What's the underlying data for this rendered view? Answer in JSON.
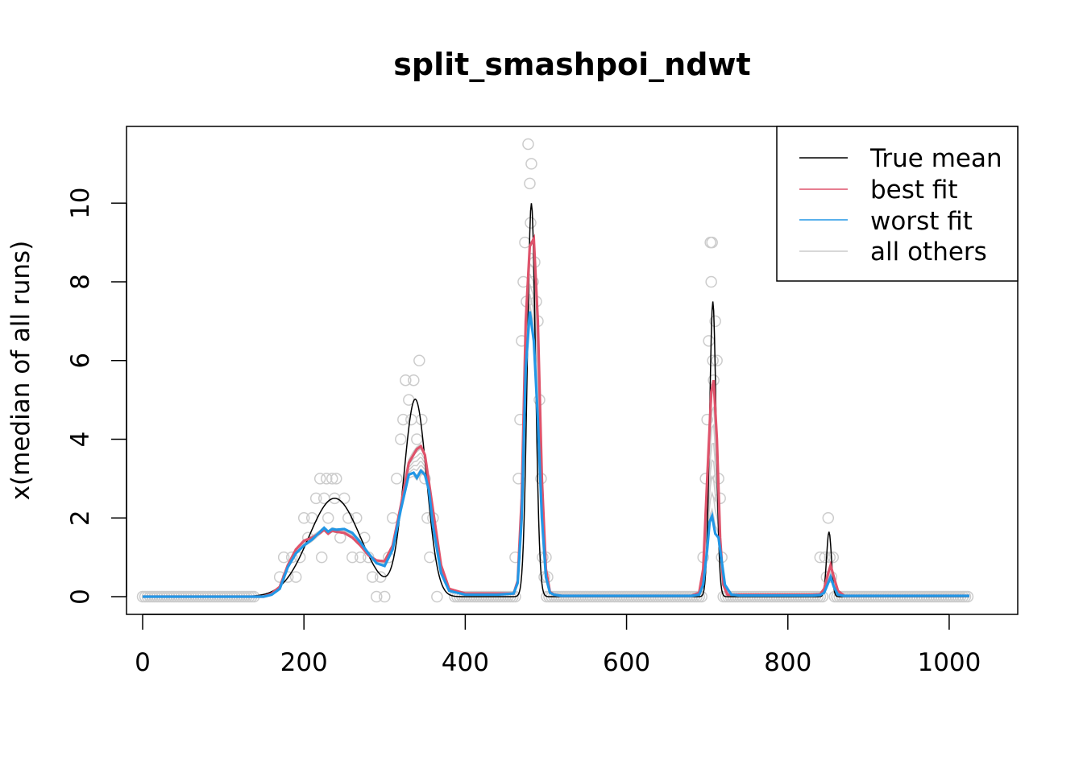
{
  "chart_data": {
    "type": "line",
    "title": "split_smashpoi_ndwt",
    "xlabel": "",
    "ylabel": "x(median of all runs)",
    "xlim": [
      -20,
      1085
    ],
    "ylim": [
      -0.45,
      11.95
    ],
    "xticks": [
      0,
      200,
      400,
      600,
      800,
      1000
    ],
    "yticks": [
      0,
      2,
      4,
      6,
      8,
      10
    ],
    "legend": {
      "position": "top-right",
      "entries": [
        {
          "label": "True mean",
          "color": "#000000"
        },
        {
          "label": "best fit",
          "color": "#DF536B"
        },
        {
          "label": "worst fit",
          "color": "#2297E6"
        },
        {
          "label": "all others",
          "color": "#CCCCCC"
        }
      ]
    },
    "colors": {
      "true_mean": "#000000",
      "best_fit": "#DF536B",
      "worst_fit": "#2297E6",
      "others": "#CCCCCC",
      "points": "#CCCCCC"
    },
    "true_mean_components": [
      {
        "center": 238,
        "height": 2.5,
        "width": 32
      },
      {
        "center": 338,
        "height": 5.0,
        "width": 14
      },
      {
        "center": 482,
        "height": 10.0,
        "width": 5
      },
      {
        "center": 707,
        "height": 7.5,
        "width": 4
      },
      {
        "center": 851,
        "height": 1.65,
        "width": 3
      }
    ],
    "series": [
      {
        "name": "best fit",
        "x": [
          0,
          150,
          160,
          170,
          180,
          190,
          200,
          210,
          220,
          225,
          230,
          235,
          240,
          250,
          260,
          270,
          280,
          290,
          300,
          310,
          320,
          330,
          340,
          345,
          350,
          360,
          370,
          380,
          400,
          440,
          460,
          465,
          470,
          475,
          480,
          485,
          490,
          495,
          500,
          505,
          510,
          520,
          680,
          690,
          695,
          700,
          705,
          708,
          712,
          716,
          720,
          725,
          740,
          830,
          840,
          845,
          850,
          853,
          857,
          862,
          870,
          1025
        ],
        "y": [
          0,
          0,
          0.08,
          0.25,
          0.8,
          1.2,
          1.42,
          1.5,
          1.62,
          1.7,
          1.6,
          1.68,
          1.65,
          1.62,
          1.5,
          1.3,
          1.05,
          0.92,
          0.9,
          1.3,
          2.3,
          3.4,
          3.75,
          3.82,
          3.6,
          2.2,
          0.8,
          0.2,
          0.08,
          0.08,
          0.08,
          0.4,
          2.5,
          7.0,
          8.9,
          9.1,
          7.0,
          3.0,
          0.7,
          0.12,
          0.05,
          0.02,
          0.02,
          0.1,
          0.7,
          3.0,
          5.2,
          5.5,
          4.0,
          1.5,
          0.3,
          0.05,
          0.05,
          0.05,
          0.06,
          0.2,
          0.6,
          0.8,
          0.5,
          0.15,
          0.02,
          0.02
        ]
      },
      {
        "name": "worst fit",
        "x": [
          0,
          150,
          160,
          170,
          180,
          190,
          200,
          210,
          220,
          225,
          230,
          235,
          240,
          250,
          260,
          270,
          280,
          290,
          300,
          310,
          320,
          330,
          336,
          340,
          345,
          350,
          355,
          360,
          370,
          380,
          400,
          440,
          460,
          465,
          470,
          475,
          480,
          485,
          490,
          495,
          500,
          505,
          510,
          520,
          680,
          690,
          695,
          700,
          703,
          706,
          710,
          714,
          718,
          722,
          730,
          740,
          830,
          840,
          845,
          850,
          853,
          857,
          862,
          870,
          1025
        ],
        "y": [
          0,
          0,
          0.05,
          0.2,
          0.75,
          1.1,
          1.3,
          1.45,
          1.65,
          1.75,
          1.65,
          1.72,
          1.7,
          1.72,
          1.62,
          1.38,
          1.1,
          0.85,
          0.78,
          1.2,
          2.2,
          3.1,
          3.15,
          3.02,
          3.2,
          3.1,
          2.7,
          1.8,
          0.6,
          0.15,
          0.05,
          0.05,
          0.08,
          0.35,
          2.0,
          5.8,
          7.25,
          6.5,
          4.5,
          2.0,
          0.5,
          0.1,
          0.05,
          0.02,
          0.02,
          0.05,
          0.3,
          1.2,
          1.9,
          2.05,
          1.6,
          1.5,
          0.9,
          0.3,
          0.05,
          0.03,
          0.03,
          0.04,
          0.1,
          0.35,
          0.5,
          0.25,
          0.05,
          0.02,
          0.02
        ]
      }
    ],
    "others": {
      "count": 8,
      "description_free": true
    },
    "scatter_points_sample_heights": {
      "x": [
        170,
        175,
        180,
        185,
        190,
        195,
        200,
        205,
        210,
        215,
        220,
        222,
        225,
        228,
        230,
        235,
        238,
        240,
        245,
        250,
        255,
        260,
        265,
        270,
        275,
        280,
        285,
        290,
        295,
        300,
        305,
        310,
        315,
        320,
        323,
        326,
        330,
        333,
        336,
        340,
        343,
        346,
        350,
        353,
        356,
        360,
        365,
        462,
        466,
        468,
        470,
        472,
        474,
        476,
        478,
        480,
        481,
        482,
        484,
        486,
        488,
        490,
        492,
        494,
        496,
        498,
        500,
        502,
        695,
        698,
        700,
        702,
        704,
        705,
        706,
        707,
        708,
        710,
        712,
        714,
        716,
        718,
        720,
        840,
        843,
        846,
        848,
        850,
        852,
        854,
        856,
        858
      ],
      "y": [
        0.5,
        1.0,
        0.5,
        1.0,
        0.5,
        1.0,
        2.0,
        1.5,
        2.0,
        2.5,
        3.0,
        1.0,
        2.5,
        3.0,
        2.0,
        3.0,
        2.5,
        3.0,
        1.5,
        2.5,
        2.0,
        1.0,
        2.0,
        1.0,
        1.5,
        1.0,
        0.5,
        0.0,
        0.5,
        0.0,
        1.0,
        2.0,
        3.0,
        4.0,
        4.5,
        5.5,
        5.0,
        4.5,
        5.5,
        4.0,
        6.0,
        4.5,
        3.0,
        2.0,
        1.0,
        2.0,
        0.0,
        1.0,
        3.0,
        4.5,
        6.5,
        8.0,
        9.0,
        7.5,
        11.5,
        10.5,
        9.5,
        11.0,
        8.0,
        8.5,
        7.5,
        7.0,
        5.0,
        3.0,
        1.0,
        0.5,
        1.0,
        0.5,
        1.0,
        3.0,
        4.5,
        6.5,
        9.0,
        8.0,
        9.0,
        6.0,
        5.5,
        7.0,
        6.0,
        3.0,
        2.5,
        1.0,
        0.0,
        1.0,
        0.0,
        1.0,
        0.5,
        2.0,
        1.0,
        0.5,
        1.0,
        0.0
      ]
    }
  }
}
